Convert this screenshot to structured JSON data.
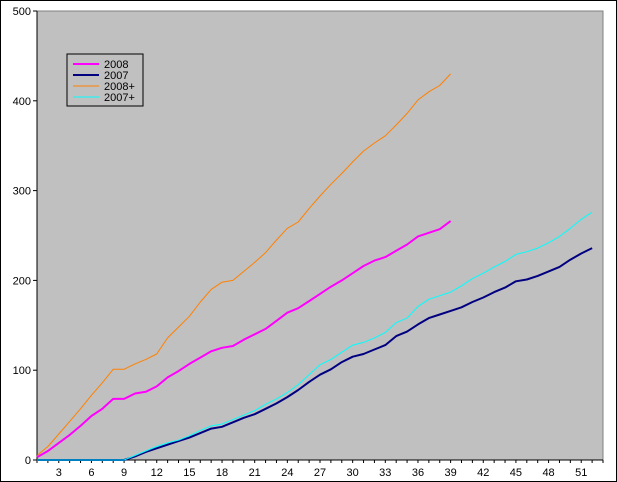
{
  "chart_data": {
    "type": "line",
    "title": "",
    "xlabel": "",
    "ylabel": "",
    "xlim": [
      1,
      53
    ],
    "ylim": [
      0,
      500
    ],
    "xticks": [
      3,
      6,
      9,
      12,
      15,
      18,
      21,
      24,
      27,
      30,
      33,
      36,
      39,
      42,
      45,
      48,
      51
    ],
    "yticks": [
      0,
      100,
      200,
      300,
      400,
      500
    ],
    "grid": false,
    "legend_position": "top-left",
    "plot_background": "#c0c0c0",
    "series": [
      {
        "name": "2008",
        "color": "#ff00ff",
        "width": 2,
        "x": [
          1,
          2,
          3,
          4,
          5,
          6,
          7,
          8,
          9,
          10,
          11,
          12,
          13,
          14,
          15,
          16,
          17,
          18,
          19,
          20,
          21,
          22,
          23,
          24,
          25,
          26,
          27,
          28,
          29,
          30,
          31,
          32,
          33,
          34,
          35,
          36,
          37,
          38,
          39
        ],
        "y": [
          3,
          10,
          19,
          28,
          38,
          49,
          57,
          68,
          68,
          74,
          76,
          82,
          92,
          99,
          107,
          114,
          121,
          125,
          127,
          134,
          140,
          146,
          155,
          164,
          169,
          177,
          185,
          193,
          200,
          208,
          216,
          222,
          226,
          233,
          240,
          249,
          253,
          257,
          266
        ]
      },
      {
        "name": "2007",
        "color": "#000080",
        "width": 2,
        "x": [
          1,
          2,
          3,
          4,
          5,
          6,
          7,
          8,
          9,
          10,
          11,
          12,
          13,
          14,
          15,
          16,
          17,
          18,
          19,
          20,
          21,
          22,
          23,
          24,
          25,
          26,
          27,
          28,
          29,
          30,
          31,
          32,
          33,
          34,
          35,
          36,
          37,
          38,
          39,
          40,
          41,
          42,
          43,
          44,
          45,
          46,
          47,
          48,
          49,
          50,
          51,
          52
        ],
        "y": [
          0,
          0,
          0,
          0,
          0,
          0,
          0,
          0,
          0,
          4,
          9,
          13,
          17,
          21,
          25,
          30,
          35,
          37,
          42,
          47,
          51,
          57,
          63,
          70,
          78,
          87,
          95,
          101,
          109,
          115,
          118,
          123,
          128,
          138,
          143,
          151,
          158,
          162,
          166,
          170,
          176,
          181,
          187,
          192,
          199,
          201,
          205,
          210,
          215,
          223,
          230,
          236
        ]
      },
      {
        "name": "2008+",
        "color": "#ff8000",
        "width": 1,
        "x": [
          1,
          2,
          3,
          4,
          5,
          6,
          7,
          8,
          9,
          10,
          11,
          12,
          13,
          14,
          15,
          16,
          17,
          18,
          19,
          20,
          21,
          22,
          23,
          24,
          25,
          26,
          27,
          28,
          29,
          30,
          31,
          32,
          33,
          34,
          35,
          36,
          37,
          38,
          39
        ],
        "y": [
          5,
          15,
          29,
          43,
          57,
          72,
          86,
          101,
          101,
          107,
          112,
          118,
          136,
          148,
          160,
          176,
          190,
          198,
          200,
          210,
          220,
          231,
          245,
          258,
          265,
          280,
          294,
          307,
          319,
          332,
          344,
          353,
          361,
          373,
          386,
          401,
          410,
          417,
          430
        ]
      },
      {
        "name": "2007+",
        "color": "#00ffff",
        "width": 1,
        "x": [
          1,
          2,
          3,
          4,
          5,
          6,
          7,
          8,
          9,
          10,
          11,
          12,
          13,
          14,
          15,
          16,
          17,
          18,
          19,
          20,
          21,
          22,
          23,
          24,
          25,
          26,
          27,
          28,
          29,
          30,
          31,
          32,
          33,
          34,
          35,
          36,
          37,
          38,
          39,
          40,
          41,
          42,
          43,
          44,
          45,
          46,
          47,
          48,
          49,
          50,
          51,
          52
        ],
        "y": [
          0,
          0,
          0,
          0,
          0,
          0,
          0,
          0,
          0,
          5,
          10,
          15,
          19,
          22,
          27,
          33,
          38,
          40,
          45,
          50,
          55,
          62,
          68,
          75,
          84,
          95,
          106,
          112,
          120,
          128,
          131,
          136,
          142,
          153,
          158,
          171,
          179,
          183,
          187,
          194,
          202,
          208,
          215,
          221,
          229,
          232,
          236,
          242,
          249,
          258,
          268,
          276
        ]
      }
    ]
  }
}
